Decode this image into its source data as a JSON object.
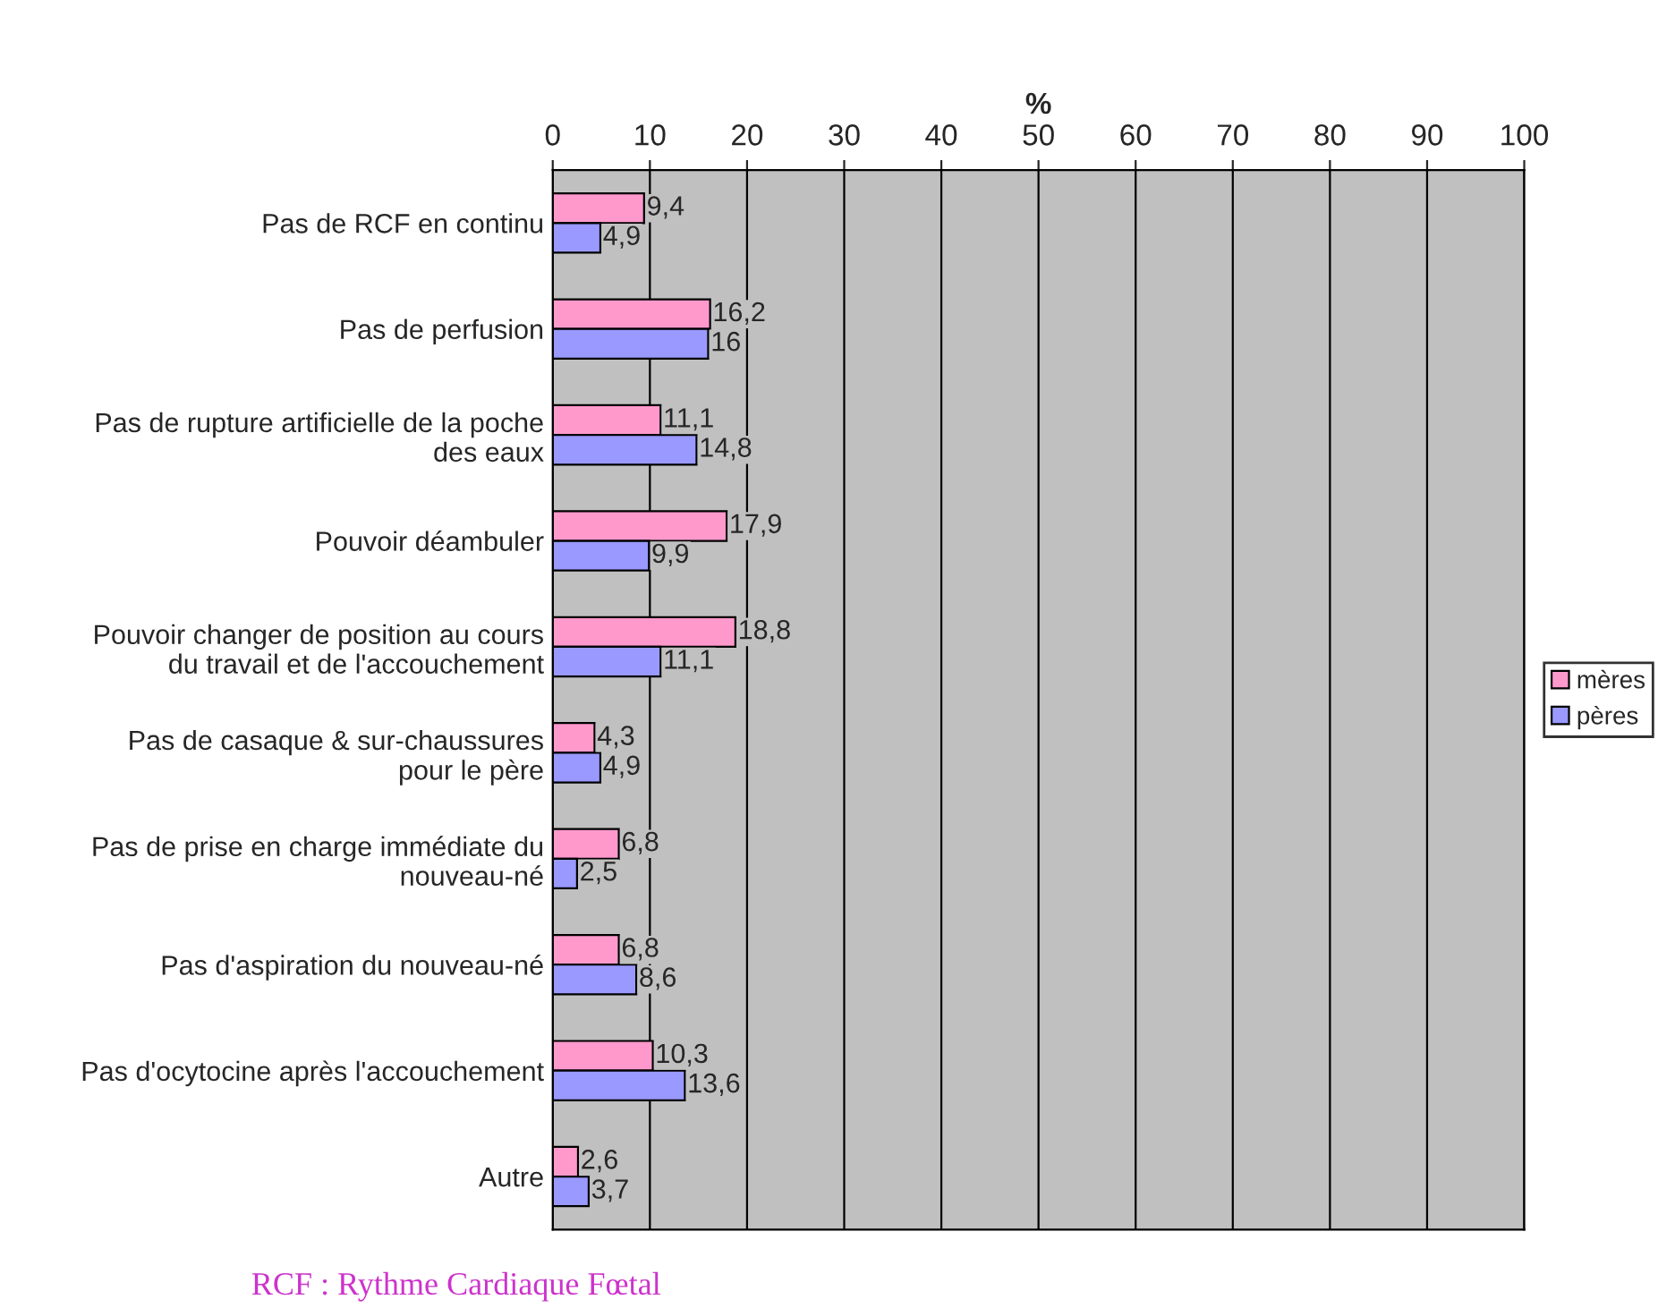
{
  "chart_data": {
    "type": "bar",
    "orientation": "horizontal",
    "xlabel": "%",
    "categories": [
      "Pas de RCF en continu",
      "Pas de perfusion",
      "Pas de rupture artificielle de la poche\ndes eaux",
      "Pouvoir déambuler",
      "Pouvoir changer de position au cours\ndu travail et de l'accouchement",
      "Pas de casaque & sur-chaussures\npour le père",
      "Pas de prise en charge immédiate du\nnouveau-né",
      "Pas d'aspiration du nouveau-né",
      "Pas d'ocytocine après l'accouchement",
      "Autre"
    ],
    "series": [
      {
        "name": "mères",
        "color": "#ff99cc",
        "values": [
          9.4,
          16.2,
          11.1,
          17.9,
          18.8,
          4.3,
          6.8,
          6.8,
          10.3,
          2.6
        ],
        "value_labels": [
          "9,4",
          "16,2",
          "11,1",
          "17,9",
          "18,8",
          "4,3",
          "6,8",
          "6,8",
          "10,3",
          "2,6"
        ]
      },
      {
        "name": "pères",
        "color": "#9999ff",
        "values": [
          4.9,
          16,
          14.8,
          9.9,
          11.1,
          4.9,
          2.5,
          8.6,
          13.6,
          3.7
        ],
        "value_labels": [
          "4,9",
          "16",
          "14,8",
          "9,9",
          "11,1",
          "4,9",
          "2,5",
          "8,6",
          "13,6",
          "3,7"
        ]
      }
    ],
    "xlim": [
      0,
      100
    ],
    "xticks": [
      0,
      10,
      20,
      30,
      40,
      50,
      60,
      70,
      80,
      90,
      100
    ],
    "grid": "x",
    "legend": "right",
    "annotations": [
      "RCF : Rythme Cardiaque Fœtal"
    ]
  }
}
